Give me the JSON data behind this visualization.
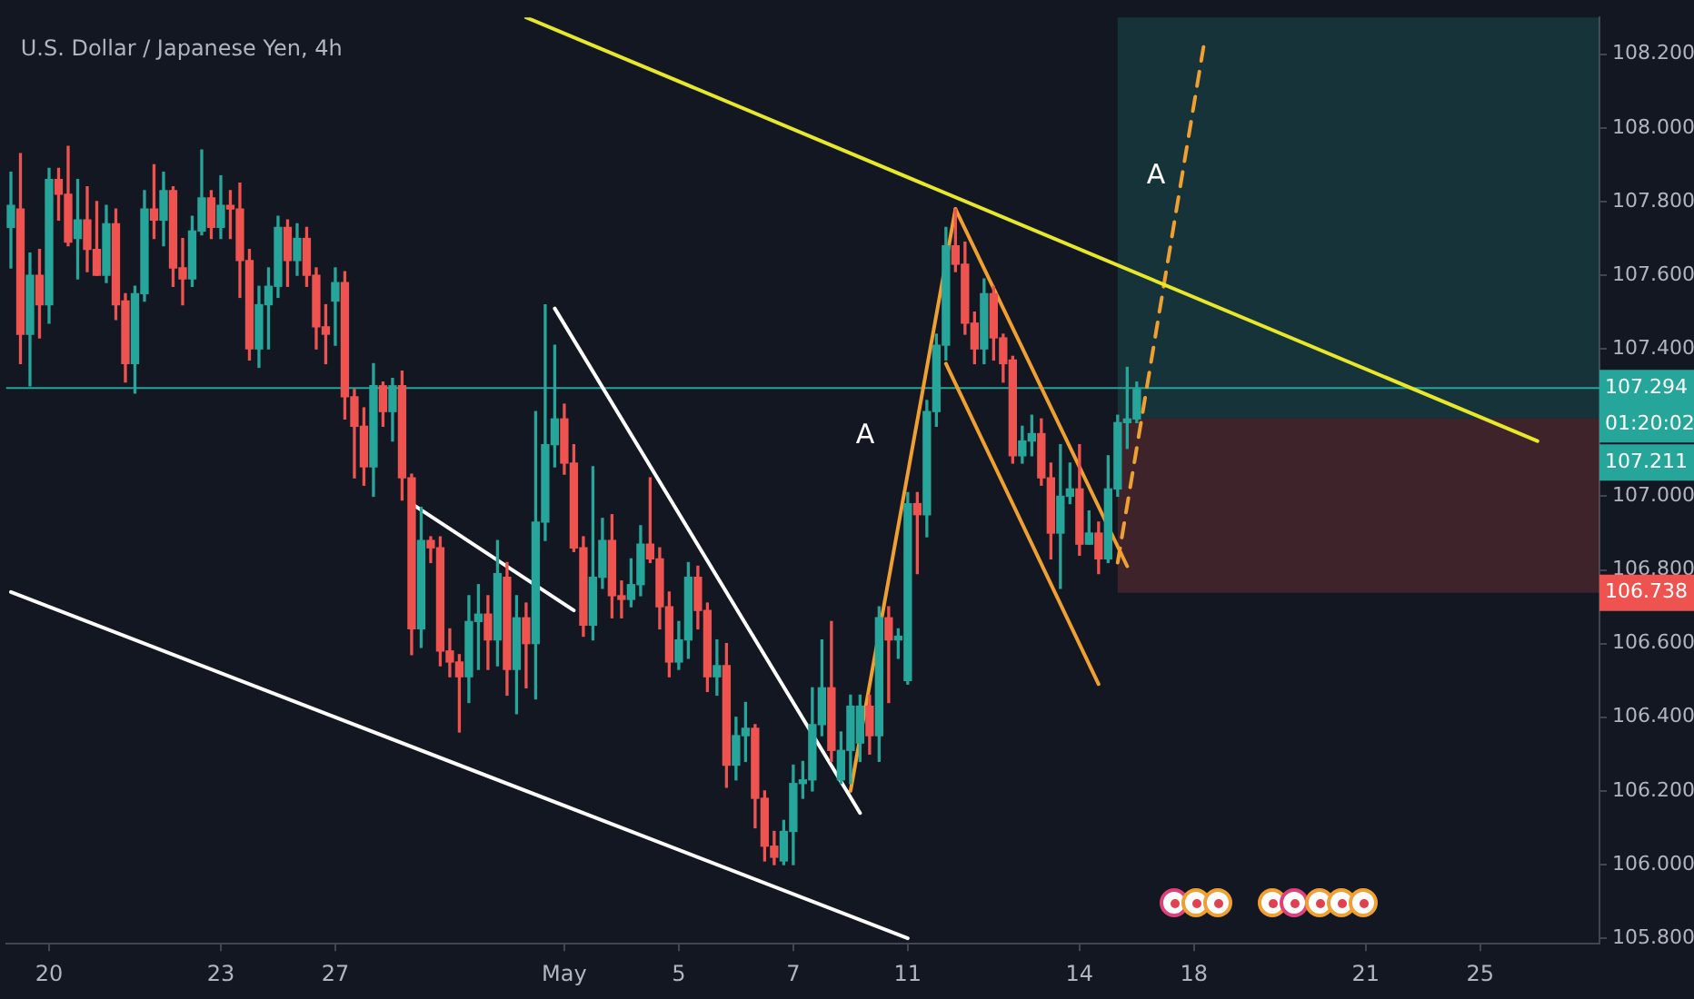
{
  "chart_data": {
    "type": "candlestick",
    "title": "U.S. Dollar / Japanese Yen, 4h",
    "categories": [
      null,
      null,
      null,
      null,
      "20",
      null,
      null,
      null,
      null,
      null,
      null,
      null,
      null,
      null,
      null,
      null,
      null,
      null,
      null,
      null,
      null,
      null,
      "23",
      null,
      null,
      null,
      null,
      null,
      null,
      null,
      null,
      null,
      null,
      null,
      "27",
      null,
      null,
      null,
      null,
      null,
      null,
      null,
      null,
      null,
      null,
      null,
      null,
      null,
      null,
      null,
      null,
      null,
      null,
      null,
      null,
      null,
      null,
      null,
      "May",
      null,
      null,
      null,
      null,
      null,
      null,
      null,
      null,
      null,
      null,
      null,
      "5",
      null,
      null,
      null,
      null,
      null,
      null,
      null,
      null,
      null,
      null,
      null,
      "7",
      null,
      null,
      null,
      null,
      null,
      null,
      null,
      null,
      null,
      null,
      null,
      "11",
      null,
      null,
      null,
      null,
      null,
      null,
      null,
      null,
      null,
      null,
      null,
      null,
      null,
      null,
      null,
      null,
      null,
      "14",
      null,
      null,
      null,
      null,
      null,
      null,
      null,
      null,
      null,
      null,
      null,
      "18",
      null,
      null,
      null,
      null,
      null,
      null,
      null,
      null,
      null,
      null,
      null,
      null,
      null,
      null,
      null,
      null,
      null,
      "21",
      null,
      null,
      null,
      null,
      null,
      null,
      null,
      null,
      null,
      null,
      null,
      "25",
      null,
      null,
      null,
      null,
      null,
      null,
      null,
      null,
      null,
      null,
      null,
      null
    ],
    "ohlc": [
      [
        107.73,
        107.88,
        107.62,
        107.79
      ],
      [
        107.78,
        107.93,
        107.36,
        107.44
      ],
      [
        107.44,
        107.66,
        107.3,
        107.6
      ],
      [
        107.6,
        107.67,
        107.43,
        107.52
      ],
      [
        107.52,
        107.89,
        107.47,
        107.86
      ],
      [
        107.86,
        107.89,
        107.75,
        107.82
      ],
      [
        107.82,
        107.95,
        107.68,
        107.69
      ],
      [
        107.7,
        107.86,
        107.59,
        107.75
      ],
      [
        107.75,
        107.84,
        107.61,
        107.67
      ],
      [
        107.67,
        107.8,
        107.6,
        107.6
      ],
      [
        107.6,
        107.79,
        107.58,
        107.74
      ],
      [
        107.74,
        107.78,
        107.48,
        107.52
      ],
      [
        107.53,
        107.55,
        107.31,
        107.36
      ],
      [
        107.36,
        107.57,
        107.28,
        107.55
      ],
      [
        107.55,
        107.83,
        107.53,
        107.78
      ],
      [
        107.78,
        107.9,
        107.7,
        107.75
      ],
      [
        107.75,
        107.88,
        107.68,
        107.83
      ],
      [
        107.83,
        107.84,
        107.57,
        107.62
      ],
      [
        107.62,
        107.7,
        107.52,
        107.59
      ],
      [
        107.59,
        107.76,
        107.57,
        107.72
      ],
      [
        107.72,
        107.94,
        107.71,
        107.81
      ],
      [
        107.81,
        107.83,
        107.7,
        107.73
      ],
      [
        107.73,
        107.87,
        107.7,
        107.79
      ],
      [
        107.79,
        107.83,
        107.7,
        107.78
      ],
      [
        107.78,
        107.85,
        107.54,
        107.64
      ],
      [
        107.64,
        107.67,
        107.37,
        107.4
      ],
      [
        107.4,
        107.57,
        107.35,
        107.52
      ],
      [
        107.52,
        107.62,
        107.4,
        107.57
      ],
      [
        107.57,
        107.76,
        107.54,
        107.73
      ],
      [
        107.73,
        107.75,
        107.57,
        107.64
      ],
      [
        107.64,
        107.74,
        107.6,
        107.7
      ],
      [
        107.7,
        107.73,
        107.57,
        107.6
      ],
      [
        107.6,
        107.62,
        107.4,
        107.46
      ],
      [
        107.46,
        107.52,
        107.36,
        107.44
      ],
      [
        107.53,
        107.62,
        107.41,
        107.58
      ],
      [
        107.58,
        107.61,
        107.21,
        107.27
      ],
      [
        107.27,
        107.29,
        107.05,
        107.19
      ],
      [
        107.19,
        107.24,
        107.03,
        107.08
      ],
      [
        107.08,
        107.36,
        107.0,
        107.3
      ],
      [
        107.3,
        107.31,
        107.19,
        107.23
      ],
      [
        107.23,
        107.32,
        107.15,
        107.3
      ],
      [
        107.3,
        107.34,
        106.99,
        107.05
      ],
      [
        107.05,
        107.06,
        106.57,
        106.64
      ],
      [
        106.64,
        106.97,
        106.59,
        106.88
      ],
      [
        106.88,
        106.89,
        106.82,
        106.86
      ],
      [
        106.86,
        106.89,
        106.54,
        106.58
      ],
      [
        106.58,
        106.64,
        106.51,
        106.55
      ],
      [
        106.55,
        106.57,
        106.36,
        106.51
      ],
      [
        106.51,
        106.73,
        106.44,
        106.66
      ],
      [
        106.66,
        106.76,
        106.53,
        106.68
      ],
      [
        106.68,
        106.73,
        106.53,
        106.61
      ],
      [
        106.61,
        106.88,
        106.54,
        106.79
      ],
      [
        106.78,
        106.82,
        106.46,
        106.53
      ],
      [
        106.53,
        106.73,
        106.41,
        106.67
      ],
      [
        106.67,
        106.71,
        106.48,
        106.6
      ],
      [
        106.6,
        107.23,
        106.45,
        106.93
      ],
      [
        106.93,
        107.52,
        106.88,
        107.14
      ],
      [
        107.14,
        107.41,
        107.08,
        107.21
      ],
      [
        107.21,
        107.25,
        107.06,
        107.09
      ],
      [
        107.09,
        107.14,
        106.85,
        106.86
      ],
      [
        106.86,
        106.89,
        106.62,
        106.65
      ],
      [
        106.65,
        107.08,
        106.61,
        106.78
      ],
      [
        106.78,
        106.94,
        106.75,
        106.88
      ],
      [
        106.88,
        106.95,
        106.67,
        106.73
      ],
      [
        106.73,
        106.77,
        106.67,
        106.72
      ],
      [
        106.72,
        106.83,
        106.7,
        106.76
      ],
      [
        106.76,
        106.92,
        106.73,
        106.87
      ],
      [
        106.87,
        107.05,
        106.82,
        106.83
      ],
      [
        106.83,
        106.86,
        106.64,
        106.7
      ],
      [
        106.7,
        106.74,
        106.51,
        106.55
      ],
      [
        106.55,
        106.66,
        106.53,
        106.61
      ],
      [
        106.61,
        106.82,
        106.56,
        106.78
      ],
      [
        106.78,
        106.81,
        106.64,
        106.69
      ],
      [
        106.69,
        106.71,
        106.47,
        106.51
      ],
      [
        106.51,
        106.61,
        106.46,
        106.54
      ],
      [
        106.54,
        106.6,
        106.21,
        106.27
      ],
      [
        106.27,
        106.4,
        106.23,
        106.35
      ],
      [
        106.35,
        106.44,
        106.28,
        106.37
      ],
      [
        106.37,
        106.38,
        106.1,
        106.18
      ],
      [
        106.18,
        106.2,
        106.01,
        106.05
      ],
      [
        106.05,
        106.09,
        106.0,
        106.02
      ],
      [
        106.01,
        106.12,
        106.0,
        106.09
      ],
      [
        106.09,
        106.27,
        106.0,
        106.22
      ],
      [
        106.22,
        106.28,
        106.18,
        106.23
      ],
      [
        106.23,
        106.48,
        106.2,
        106.38
      ],
      [
        106.38,
        106.61,
        106.35,
        106.48
      ],
      [
        106.48,
        106.66,
        106.28,
        106.31
      ],
      [
        106.23,
        106.36,
        106.22,
        106.31
      ],
      [
        106.31,
        106.46,
        106.22,
        106.43
      ],
      [
        106.33,
        106.46,
        106.28,
        106.43
      ],
      [
        106.43,
        106.46,
        106.3,
        106.35
      ],
      [
        106.35,
        106.7,
        106.28,
        106.67
      ],
      [
        106.67,
        106.7,
        106.44,
        106.61
      ],
      [
        106.61,
        106.64,
        106.56,
        106.62
      ],
      [
        106.5,
        107.01,
        106.49,
        106.98
      ],
      [
        106.98,
        107.01,
        106.79,
        106.95
      ],
      [
        106.95,
        107.26,
        106.89,
        107.23
      ],
      [
        107.23,
        107.44,
        107.19,
        107.41
      ],
      [
        107.41,
        107.73,
        107.37,
        107.68
      ],
      [
        107.68,
        107.78,
        107.61,
        107.63
      ],
      [
        107.63,
        107.69,
        107.44,
        107.47
      ],
      [
        107.47,
        107.5,
        107.36,
        107.4
      ],
      [
        107.4,
        107.59,
        107.36,
        107.55
      ],
      [
        107.55,
        107.57,
        107.37,
        107.43
      ],
      [
        107.43,
        107.44,
        107.31,
        107.36
      ],
      [
        107.37,
        107.38,
        107.09,
        107.11
      ],
      [
        107.11,
        107.19,
        107.09,
        107.15
      ],
      [
        107.15,
        107.22,
        107.11,
        107.17
      ],
      [
        107.17,
        107.21,
        107.03,
        107.05
      ],
      [
        107.05,
        107.09,
        106.83,
        106.9
      ],
      [
        106.9,
        107.14,
        106.75,
        107.0
      ],
      [
        107.0,
        107.09,
        106.98,
        107.02
      ],
      [
        107.02,
        107.14,
        106.84,
        106.87
      ],
      [
        106.87,
        106.96,
        106.87,
        106.9
      ],
      [
        106.9,
        106.93,
        106.79,
        106.83
      ],
      [
        106.83,
        107.11,
        106.82,
        107.02
      ],
      [
        107.02,
        107.22,
        107.0,
        107.2
      ],
      [
        107.2,
        107.35,
        107.13,
        107.21
      ],
      [
        107.21,
        107.31,
        107.2,
        107.29
      ],
      null,
      null,
      null,
      null,
      null,
      null,
      null,
      null,
      null,
      null,
      null,
      null,
      null,
      null,
      null,
      null,
      null,
      null,
      null,
      null,
      null,
      null,
      null,
      null,
      null,
      null,
      null,
      null,
      null,
      null,
      null,
      null,
      null,
      null,
      null,
      null,
      null,
      null,
      null,
      null,
      null,
      null,
      null,
      null,
      null,
      null,
      null,
      null
    ],
    "colors": [
      "#26a69a",
      "#ef5350",
      "#26a69a",
      "#ef5350",
      "#26a69a",
      "#ef5350",
      "#ef5350",
      "#26a69a",
      "#ef5350",
      "#ef5350",
      "#26a69a",
      "#ef5350",
      "#ef5350",
      "#26a69a",
      "#26a69a",
      "#ef5350",
      "#26a69a",
      "#ef5350",
      "#ef5350",
      "#26a69a",
      "#26a69a",
      "#ef5350",
      "#26a69a",
      "#ef5350",
      "#ef5350",
      "#ef5350",
      "#26a69a",
      "#26a69a",
      "#26a69a",
      "#ef5350",
      "#26a69a",
      "#ef5350",
      "#ef5350",
      "#ef5350",
      "#26a69a",
      "#ef5350",
      "#ef5350",
      "#ef5350",
      "#26a69a",
      "#ef5350",
      "#26a69a",
      "#ef5350",
      "#ef5350",
      "#26a69a",
      "#ef5350",
      "#ef5350",
      "#ef5350",
      "#ef5350",
      "#26a69a",
      "#26a69a",
      "#ef5350",
      "#26a69a",
      "#ef5350",
      "#26a69a",
      "#ef5350",
      "#26a69a",
      "#26a69a",
      "#26a69a",
      "#ef5350",
      "#ef5350",
      "#ef5350",
      "#26a69a",
      "#26a69a",
      "#ef5350",
      "#ef5350",
      "#26a69a",
      "#26a69a",
      "#ef5350",
      "#ef5350",
      "#ef5350",
      "#26a69a",
      "#26a69a",
      "#ef5350",
      "#ef5350",
      "#26a69a",
      "#ef5350",
      "#26a69a",
      "#26a69a",
      "#ef5350",
      "#ef5350",
      "#ef5350",
      "#26a69a",
      "#26a69a",
      "#26a69a",
      "#26a69a",
      "#26a69a",
      "#ef5350",
      "#26a69a",
      "#26a69a",
      "#26a69a",
      "#ef5350",
      "#26a69a",
      "#ef5350",
      "#26a69a",
      "#26a69a",
      "#ef5350",
      "#26a69a",
      "#26a69a",
      "#26a69a",
      "#ef5350",
      "#ef5350",
      "#ef5350",
      "#26a69a",
      "#ef5350",
      "#ef5350",
      "#ef5350",
      "#26a69a",
      "#26a69a",
      "#ef5350",
      "#ef5350",
      "#26a69a",
      "#26a69a",
      "#ef5350",
      "#26a69a",
      "#ef5350",
      "#26a69a",
      "#26a69a",
      "#26a69a",
      "#26a69a",
      null,
      null,
      null,
      null,
      null,
      null,
      null,
      null,
      null,
      null,
      null,
      null,
      null,
      null,
      null,
      null,
      null,
      null,
      null,
      null,
      null,
      null,
      null,
      null,
      null,
      null,
      null,
      null,
      null,
      null,
      null,
      null,
      null,
      null,
      null,
      null,
      null,
      null,
      null,
      null,
      null,
      null,
      null,
      null,
      null,
      null,
      null,
      null
    ],
    "series": [
      {
        "type": "line",
        "color": "#e8e82a",
        "values": [
          null,
          null,
          null,
          null,
          null,
          null,
          null,
          null,
          null,
          null,
          null,
          null,
          null,
          null,
          null,
          null,
          null,
          null,
          null,
          null,
          null,
          null,
          null,
          null,
          null,
          null,
          null,
          null,
          null,
          null,
          null,
          null,
          null,
          null,
          null,
          null,
          null,
          null,
          null,
          null,
          null,
          null,
          null,
          null,
          null,
          null,
          null,
          null,
          null,
          null,
          null,
          null,
          null,
          null,
          108.3,
          null,
          null,
          null,
          null,
          null,
          null,
          null,
          null,
          null,
          null,
          null,
          null,
          null,
          null,
          null,
          null,
          null,
          null,
          null,
          null,
          null,
          null,
          null,
          null,
          null,
          null,
          null,
          null,
          null,
          null,
          null,
          null,
          null,
          null,
          null,
          null,
          null,
          null,
          null,
          null,
          null,
          null,
          null,
          null,
          null,
          null,
          null,
          null,
          null,
          null,
          null,
          null,
          null,
          null,
          null,
          null,
          null,
          null,
          null,
          null,
          null,
          null,
          null,
          null,
          null,
          null,
          null,
          null,
          null,
          null,
          null,
          null,
          null,
          null,
          null,
          null,
          null,
          null,
          null,
          null,
          null,
          null,
          null,
          null,
          null,
          null,
          null,
          null,
          null,
          null,
          null,
          null,
          null,
          null,
          null,
          null,
          null,
          null,
          null,
          null,
          null,
          null,
          null,
          null,
          null,
          107.15,
          null,
          null,
          null,
          null,
          null,
          null
        ]
      },
      {
        "type": "line",
        "color": "#ffffff",
        "values": [
          106.74,
          null,
          null,
          null,
          null,
          null,
          null,
          null,
          null,
          null,
          null,
          null,
          null,
          null,
          null,
          null,
          null,
          null,
          null,
          null,
          null,
          null,
          null,
          null,
          null,
          null,
          null,
          null,
          null,
          null,
          null,
          null,
          null,
          null,
          null,
          null,
          null,
          null,
          null,
          null,
          null,
          null,
          null,
          null,
          null,
          null,
          null,
          null,
          null,
          null,
          null,
          null,
          null,
          null,
          null,
          null,
          null,
          null,
          null,
          null,
          null,
          null,
          null,
          null,
          null,
          null,
          null,
          null,
          null,
          null,
          null,
          null,
          null,
          null,
          null,
          null,
          null,
          null,
          null,
          null,
          null,
          null,
          null,
          null,
          null,
          null,
          null,
          null,
          null,
          null,
          null,
          null,
          null,
          null,
          105.8,
          null,
          null,
          null,
          null,
          null,
          null,
          null,
          null,
          null,
          null,
          null,
          null,
          null,
          null,
          null,
          null,
          null,
          null,
          null,
          null,
          null,
          null,
          null,
          null,
          null,
          null,
          null,
          null,
          null,
          null,
          null,
          null,
          null,
          null,
          null,
          null,
          null,
          null,
          null,
          null,
          null,
          null,
          null,
          null,
          null,
          null,
          null,
          null,
          null,
          null,
          null,
          null,
          null,
          null,
          null,
          null,
          null,
          null,
          null,
          null,
          null,
          null,
          null,
          null,
          null,
          null,
          null,
          null,
          null,
          null,
          null,
          null
        ]
      },
      {
        "type": "line",
        "color": "#ffffff",
        "values": [
          null,
          null,
          null,
          null,
          null,
          null,
          null,
          null,
          null,
          null,
          null,
          null,
          null,
          null,
          null,
          null,
          null,
          null,
          null,
          null,
          null,
          null,
          null,
          null,
          null,
          null,
          null,
          null,
          null,
          null,
          null,
          null,
          null,
          null,
          null,
          null,
          null,
          null,
          null,
          null,
          null,
          null,
          106.98,
          null,
          null,
          null,
          null,
          null,
          null,
          null,
          null,
          null,
          null,
          null,
          null,
          null,
          null,
          null,
          null,
          106.69,
          null,
          null,
          null,
          null,
          null,
          null,
          null,
          null,
          null,
          null,
          null,
          null,
          null,
          null,
          null,
          null,
          null,
          null,
          null,
          null,
          null,
          null,
          null,
          null,
          null,
          null,
          null,
          null,
          null,
          null,
          null,
          null,
          null,
          null,
          null,
          null,
          null,
          null,
          null,
          null,
          null,
          null,
          null,
          null,
          null,
          null,
          null,
          null,
          null,
          null,
          null,
          null,
          null,
          null,
          null,
          null,
          null,
          null,
          null,
          null,
          null,
          null,
          null,
          null,
          null,
          null,
          null,
          null,
          null,
          null,
          null,
          null,
          null,
          null,
          null,
          null,
          null,
          null,
          null,
          null,
          null,
          null,
          null,
          null,
          null,
          null,
          null,
          null,
          null,
          null,
          null,
          null,
          null,
          null,
          null,
          null,
          null,
          null,
          null,
          null,
          null,
          null,
          null,
          null,
          null,
          null,
          null
        ]
      },
      {
        "type": "line",
        "color": "#ffffff",
        "values": [
          null,
          null,
          null,
          null,
          null,
          null,
          null,
          null,
          null,
          null,
          null,
          null,
          null,
          null,
          null,
          null,
          null,
          null,
          null,
          null,
          null,
          null,
          null,
          null,
          null,
          null,
          null,
          null,
          null,
          null,
          null,
          null,
          null,
          null,
          null,
          null,
          null,
          null,
          null,
          null,
          null,
          null,
          null,
          null,
          null,
          null,
          null,
          null,
          null,
          null,
          null,
          null,
          null,
          null,
          null,
          null,
          null,
          107.51,
          null,
          null,
          null,
          null,
          null,
          null,
          null,
          null,
          null,
          null,
          null,
          null,
          null,
          null,
          null,
          null,
          null,
          null,
          null,
          null,
          null,
          null,
          null,
          null,
          null,
          null,
          null,
          null,
          null,
          null,
          null,
          106.14,
          null,
          null,
          null,
          null,
          null,
          null,
          null,
          null,
          null,
          null,
          null,
          null,
          null,
          null,
          null,
          null,
          null,
          null,
          null,
          null,
          null,
          null,
          null,
          null,
          null,
          null,
          null,
          null,
          null,
          null,
          null,
          null,
          null,
          null,
          null,
          null,
          null,
          null,
          null,
          null,
          null,
          null,
          null,
          null,
          null,
          null,
          null,
          null,
          null,
          null,
          null,
          null,
          null,
          null,
          null,
          null,
          null,
          null,
          null,
          null,
          null,
          null,
          null,
          null,
          null,
          null,
          null,
          null,
          null,
          null,
          null,
          null,
          null,
          null,
          null,
          null,
          null
        ]
      },
      {
        "type": "line",
        "color": "#f0a030",
        "values": [
          null,
          null,
          null,
          null,
          null,
          null,
          null,
          null,
          null,
          null,
          null,
          null,
          null,
          null,
          null,
          null,
          null,
          null,
          null,
          null,
          null,
          null,
          null,
          null,
          null,
          null,
          null,
          null,
          null,
          null,
          null,
          null,
          null,
          null,
          null,
          null,
          null,
          null,
          null,
          null,
          null,
          null,
          null,
          null,
          null,
          null,
          null,
          null,
          null,
          null,
          null,
          null,
          null,
          null,
          null,
          null,
          null,
          null,
          null,
          null,
          null,
          null,
          null,
          null,
          null,
          null,
          null,
          null,
          null,
          null,
          null,
          null,
          null,
          null,
          null,
          null,
          null,
          null,
          null,
          null,
          null,
          null,
          null,
          null,
          null,
          null,
          null,
          null,
          106.2,
          null,
          null,
          null,
          null,
          null,
          null,
          null,
          null,
          null,
          null,
          107.78,
          null,
          null,
          null,
          null,
          null,
          null,
          null,
          null,
          null,
          null,
          null,
          null,
          null,
          null,
          null,
          null,
          null,
          null,
          null,
          null,
          null,
          null,
          null,
          null,
          null,
          null,
          null,
          null,
          null,
          null,
          null,
          null,
          null,
          null,
          null,
          null,
          null,
          null,
          null,
          null,
          null,
          null,
          null,
          null,
          null,
          null,
          null,
          null,
          null,
          null,
          null,
          null,
          null,
          null,
          null,
          null,
          null,
          null,
          null,
          null,
          null,
          null,
          null,
          null,
          null,
          null,
          null
        ]
      },
      {
        "type": "line",
        "color": "#f0a030",
        "values": [
          null,
          null,
          null,
          null,
          null,
          null,
          null,
          null,
          null,
          null,
          null,
          null,
          null,
          null,
          null,
          null,
          null,
          null,
          null,
          null,
          null,
          null,
          null,
          null,
          null,
          null,
          null,
          null,
          null,
          null,
          null,
          null,
          null,
          null,
          null,
          null,
          null,
          null,
          null,
          null,
          null,
          null,
          null,
          null,
          null,
          null,
          null,
          null,
          null,
          null,
          null,
          null,
          null,
          null,
          null,
          null,
          null,
          null,
          null,
          null,
          null,
          null,
          null,
          null,
          null,
          null,
          null,
          null,
          null,
          null,
          null,
          null,
          null,
          null,
          null,
          null,
          null,
          null,
          null,
          null,
          null,
          null,
          null,
          null,
          null,
          null,
          null,
          null,
          null,
          null,
          null,
          null,
          null,
          null,
          null,
          null,
          null,
          null,
          null,
          107.78,
          null,
          null,
          null,
          null,
          null,
          null,
          null,
          null,
          null,
          null,
          null,
          null,
          null,
          null,
          null,
          null,
          null,
          106.81,
          null,
          null,
          null,
          null,
          null,
          null,
          null,
          null,
          null,
          null,
          null,
          null,
          null,
          null,
          null,
          null,
          null,
          null,
          null,
          null,
          null,
          null,
          null,
          null,
          null,
          null,
          null,
          null,
          null,
          null,
          null,
          null,
          null,
          null,
          null,
          null,
          null,
          null,
          null,
          null,
          null,
          null,
          null,
          null,
          null,
          null,
          null,
          null,
          null
        ]
      },
      {
        "type": "line",
        "color": "#f0a030",
        "values": [
          null,
          null,
          null,
          null,
          null,
          null,
          null,
          null,
          null,
          null,
          null,
          null,
          null,
          null,
          null,
          null,
          null,
          null,
          null,
          null,
          null,
          null,
          null,
          null,
          null,
          null,
          null,
          null,
          null,
          null,
          null,
          null,
          null,
          null,
          null,
          null,
          null,
          null,
          null,
          null,
          null,
          null,
          null,
          null,
          null,
          null,
          null,
          null,
          null,
          null,
          null,
          null,
          null,
          null,
          null,
          null,
          null,
          null,
          null,
          null,
          null,
          null,
          null,
          null,
          null,
          null,
          null,
          null,
          null,
          null,
          null,
          null,
          null,
          null,
          null,
          null,
          null,
          null,
          null,
          null,
          null,
          null,
          null,
          null,
          null,
          null,
          null,
          null,
          null,
          null,
          null,
          null,
          null,
          null,
          null,
          null,
          null,
          null,
          107.36,
          null,
          null,
          null,
          null,
          null,
          null,
          null,
          null,
          null,
          null,
          null,
          null,
          null,
          null,
          null,
          106.49,
          null,
          null,
          null,
          null,
          null,
          null,
          null,
          null,
          null,
          null,
          null,
          null,
          null,
          null,
          null,
          null,
          null,
          null,
          null,
          null,
          null,
          null,
          null,
          null,
          null,
          null,
          null,
          null,
          null,
          null,
          null,
          null,
          null,
          null,
          null,
          null,
          null,
          null,
          null,
          null,
          null,
          null,
          null,
          null,
          null,
          null,
          null,
          null,
          null,
          null,
          null,
          null
        ]
      },
      {
        "type": "line",
        "color": "#f0a030",
        "line_style": "dashed",
        "values": [
          null,
          null,
          null,
          null,
          null,
          null,
          null,
          null,
          null,
          null,
          null,
          null,
          null,
          null,
          null,
          null,
          null,
          null,
          null,
          null,
          null,
          null,
          null,
          null,
          null,
          null,
          null,
          null,
          null,
          null,
          null,
          null,
          null,
          null,
          null,
          null,
          null,
          null,
          null,
          null,
          null,
          null,
          null,
          null,
          null,
          null,
          null,
          null,
          null,
          null,
          null,
          null,
          null,
          null,
          null,
          null,
          null,
          null,
          null,
          null,
          null,
          null,
          null,
          null,
          null,
          null,
          null,
          null,
          null,
          null,
          null,
          null,
          null,
          null,
          null,
          null,
          null,
          null,
          null,
          null,
          null,
          null,
          null,
          null,
          null,
          null,
          null,
          null,
          null,
          null,
          null,
          null,
          null,
          null,
          null,
          null,
          null,
          null,
          null,
          null,
          null,
          null,
          null,
          null,
          null,
          null,
          null,
          null,
          null,
          null,
          null,
          null,
          null,
          null,
          null,
          null,
          106.82,
          null,
          null,
          null,
          null,
          null,
          null,
          null,
          null,
          108.22,
          null,
          null,
          null,
          null,
          null,
          null,
          null,
          null,
          null,
          null,
          null,
          null,
          null,
          null,
          null,
          null,
          null,
          null,
          null,
          null,
          null,
          null,
          null,
          null,
          null,
          null,
          null,
          null,
          null,
          null,
          null,
          null,
          null,
          null,
          null,
          null,
          null,
          null,
          null,
          null,
          null
        ]
      }
    ],
    "ref_lines": [
      {
        "axis": "y",
        "value": 107.294,
        "label": "107.294",
        "color": "#26a69a"
      }
    ],
    "bands": [
      {
        "axis": "y",
        "from": 107.211,
        "to": 108.3,
        "label": "107.211",
        "color": "#26a69a"
      },
      {
        "axis": "y",
        "from": 106.738,
        "to": 107.211,
        "label": "106.738",
        "color": "#ef5350"
      }
    ],
    "annotations": [
      "A",
      "A",
      "01:20:02"
    ],
    "ylim": [
      105.785,
      108.3
    ],
    "yticks": [
      {
        "value": 105.8,
        "label": "105.800"
      },
      {
        "value": 106,
        "label": "106.000"
      },
      {
        "value": 106.2,
        "label": "106.200"
      },
      {
        "value": 106.4,
        "label": "106.400"
      },
      {
        "value": 106.6,
        "label": "106.600"
      },
      {
        "value": 106.8,
        "label": "106.800"
      },
      {
        "value": 107,
        "label": "107.000"
      },
      {
        "value": 107.4,
        "label": "107.400"
      },
      {
        "value": 107.6,
        "label": "107.600"
      },
      {
        "value": 107.8,
        "label": "107.800"
      },
      {
        "value": 108,
        "label": "108.000"
      },
      {
        "value": 108.2,
        "label": "108.200"
      }
    ],
    "legend": false,
    "marker": "none"
  }
}
